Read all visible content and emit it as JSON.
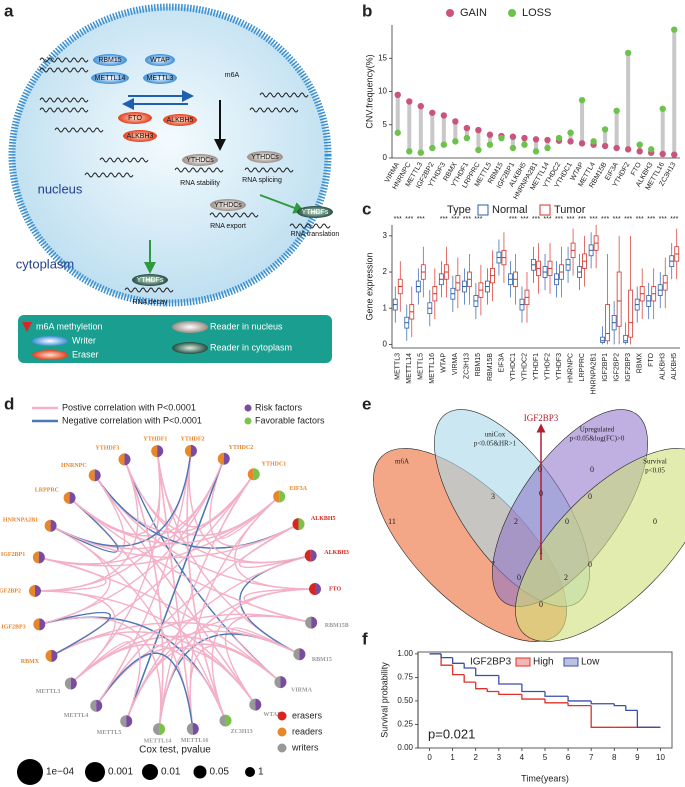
{
  "panel_labels": [
    "a",
    "b",
    "c",
    "d",
    "e",
    "f"
  ],
  "diagram": {
    "labels": [
      "RBM15",
      "WTAP",
      "METTL14",
      "METTL3",
      "m6A",
      "FTO",
      "ALKBH5",
      "ALKBH3",
      "YTHDCs",
      "RNA stability",
      "YTHDCs",
      "RNA splicing",
      "nucleus",
      "YTHDCs",
      "RNA export",
      "YTHDFs",
      "RNA translation",
      "cytoplasm",
      "YTHDFs",
      "RNA decay"
    ],
    "legend": [
      "m6A methyletion",
      "Reader in nucleus",
      "Writer",
      "Eraser",
      "Reader in cytoplasm"
    ]
  },
  "chart_data": [
    {
      "type": "lollipop",
      "ylabel": "CNV.frequency(%)",
      "categories": [
        "VIRMA",
        "HNRNPC",
        "METTL3",
        "IGF2BP2",
        "YTHDF3",
        "RBMX",
        "YTHDF1",
        "LRPPRC",
        "METTL5",
        "RBM15",
        "IGF2BP1",
        "ALKBH5",
        "HNRNPA2B1",
        "METTL14",
        "YTHDC2",
        "YTHDC1",
        "WTAP",
        "METTL4",
        "RBM15B",
        "EIF3A",
        "YTHDF2",
        "FTO",
        "ALKBH3",
        "METTL16",
        "ZC3H13"
      ],
      "series": [
        {
          "name": "GAIN",
          "color": "#c9557c",
          "values": [
            9.5,
            8.5,
            7.8,
            6.8,
            6.4,
            5.5,
            4.5,
            4.2,
            3.5,
            3.3,
            3.2,
            3.0,
            2.8,
            2.7,
            2.6,
            2.5,
            2.2,
            2.0,
            1.8,
            1.5,
            1.3,
            1.0,
            0.8,
            0.6,
            0.5
          ]
        },
        {
          "name": "LOSS",
          "color": "#6cc24a",
          "values": [
            3.8,
            1.0,
            0.8,
            1.5,
            2.0,
            2.5,
            3.0,
            1.2,
            2.0,
            3.0,
            1.5,
            2.0,
            1.0,
            1.5,
            3.0,
            3.8,
            8.7,
            2.5,
            4.3,
            7.1,
            15.8,
            2.0,
            1.3,
            7.4,
            19.3
          ]
        }
      ],
      "ylim": [
        0,
        20
      ],
      "yticks": [
        0,
        5,
        10,
        15
      ]
    },
    {
      "type": "boxplot",
      "ylabel": "Gene expression",
      "legend_title": "Type",
      "categories": [
        "METTL3",
        "METTL14",
        "METTL5",
        "METTL16",
        "WTAP",
        "VIRMA",
        "ZC3H13",
        "RBM15",
        "RBM15B",
        "EIF3A",
        "YTHDC1",
        "YTHDC2",
        "YTHDF1",
        "YTHDF2",
        "YTHDF3",
        "HNRNPC",
        "LRPPRC",
        "HNRNPA2B1",
        "IGF2BP1",
        "IGF2BP2",
        "IGF2BP3",
        "RBMX",
        "FTO",
        "ALKBH3",
        "ALKBH5"
      ],
      "significance": [
        "***",
        "***",
        "***",
        null,
        "***",
        "***",
        "***",
        "***",
        null,
        null,
        "***",
        "***",
        "***",
        "***",
        "***",
        "***",
        "***",
        "***",
        "***",
        "***",
        "***",
        "***",
        "***",
        "***",
        "***"
      ],
      "series": [
        {
          "name": "Normal",
          "color": "#2b5fad",
          "low": [
            0.6,
            0.1,
            1.1,
            0.5,
            1.3,
            0.9,
            1.1,
            0.7,
            1.1,
            1.9,
            1.3,
            0.6,
            1.7,
            1.5,
            1.3,
            1.7,
            1.5,
            2.1,
            0,
            0,
            0,
            0.6,
            0.7,
            1.0,
            1.8
          ],
          "q1": [
            0.95,
            0.45,
            1.45,
            0.85,
            1.65,
            1.25,
            1.45,
            1.05,
            1.45,
            2.25,
            1.65,
            0.95,
            2.05,
            1.85,
            1.65,
            2.05,
            1.85,
            2.45,
            0.05,
            0.4,
            0.05,
            0.95,
            1.05,
            1.35,
            2.15
          ],
          "median": [
            1.1,
            0.6,
            1.6,
            1.0,
            1.8,
            1.4,
            1.6,
            1.2,
            1.6,
            2.4,
            1.8,
            1.1,
            2.2,
            2.0,
            1.8,
            2.2,
            2.0,
            2.6,
            0.1,
            0.6,
            0.1,
            1.1,
            1.2,
            1.5,
            2.3
          ],
          "q3": [
            1.25,
            0.75,
            1.75,
            1.15,
            1.95,
            1.55,
            1.75,
            1.35,
            1.75,
            2.55,
            1.95,
            1.25,
            2.35,
            2.15,
            1.95,
            2.35,
            2.15,
            2.75,
            0.2,
            0.8,
            0.25,
            1.25,
            1.35,
            1.65,
            2.45
          ],
          "high": [
            1.6,
            1.1,
            2.1,
            1.5,
            2.3,
            1.9,
            2.1,
            1.7,
            2.1,
            2.9,
            2.3,
            1.6,
            2.7,
            2.5,
            2.3,
            2.7,
            2.5,
            3.1,
            0.5,
            1.2,
            0.6,
            1.6,
            1.7,
            2.0,
            2.8
          ]
        },
        {
          "name": "Tumor",
          "color": "#d6322a",
          "low": [
            0.9,
            0.2,
            1.3,
            0.7,
            1.3,
            1.0,
            1.1,
            0.8,
            1.2,
            1.7,
            1.1,
            0.6,
            1.4,
            1.4,
            1.3,
            1.9,
            1.6,
            2.1,
            0,
            0,
            0,
            0.7,
            0.7,
            1.0,
            1.8
          ],
          "q1": [
            1.4,
            0.7,
            1.8,
            1.2,
            1.8,
            1.5,
            1.6,
            1.3,
            1.7,
            2.2,
            1.6,
            1.1,
            1.9,
            1.9,
            1.8,
            2.4,
            2.1,
            2.6,
            0.1,
            0.5,
            0.2,
            1.2,
            1.2,
            1.5,
            2.3
          ],
          "median": [
            1.6,
            0.9,
            2.0,
            1.4,
            2.0,
            1.7,
            1.8,
            1.5,
            1.9,
            2.4,
            1.8,
            1.3,
            2.1,
            2.1,
            2.0,
            2.6,
            2.3,
            2.8,
            0.3,
            1.2,
            0.6,
            1.4,
            1.4,
            1.7,
            2.5
          ],
          "q3": [
            1.8,
            1.1,
            2.2,
            1.6,
            2.2,
            1.9,
            2.0,
            1.7,
            2.1,
            2.6,
            2.0,
            1.5,
            2.3,
            2.3,
            2.2,
            2.8,
            2.5,
            3.0,
            1.1,
            2.0,
            1.5,
            1.6,
            1.6,
            1.9,
            2.7
          ],
          "high": [
            2.3,
            1.6,
            2.7,
            2.1,
            2.7,
            2.4,
            2.5,
            2.2,
            2.6,
            3.1,
            2.5,
            2.0,
            2.8,
            2.8,
            2.7,
            3.2,
            3.0,
            3.3,
            2.5,
            3.0,
            3.0,
            2.1,
            2.1,
            2.4,
            3.2
          ]
        }
      ],
      "ylim": [
        -0.1,
        3.3
      ],
      "yticks": [
        0,
        1,
        2,
        3
      ]
    },
    {
      "type": "step",
      "xlabel": "Time(years)",
      "ylabel": "Survival probability",
      "legend_title": "IGF2BP3",
      "annotation": "p=0.021",
      "series": [
        {
          "name": "High",
          "color": "#e0302a",
          "x": [
            0,
            0.5,
            1,
            1.5,
            2,
            2.5,
            3,
            4,
            5,
            6,
            7,
            8,
            10
          ],
          "values": [
            1,
            0.88,
            0.78,
            0.7,
            0.63,
            0.6,
            0.57,
            0.52,
            0.48,
            0.45,
            0.22,
            0.22,
            0.22
          ]
        },
        {
          "name": "Low",
          "color": "#3b4fa8",
          "x": [
            0,
            0.5,
            1,
            1.5,
            2,
            3,
            4,
            5,
            6,
            7,
            8,
            8.5,
            9,
            10
          ],
          "values": [
            1,
            0.96,
            0.9,
            0.85,
            0.77,
            0.68,
            0.6,
            0.55,
            0.5,
            0.47,
            0.45,
            0.4,
            0.22,
            0.22
          ]
        }
      ],
      "xlim": [
        -0.5,
        10.5
      ],
      "xticks": [
        0,
        1,
        2,
        3,
        4,
        5,
        6,
        7,
        8,
        9,
        10
      ],
      "ylim": [
        0,
        1.02
      ],
      "yticks": [
        {
          "value": 0,
          "label": "0.00"
        },
        {
          "value": 0.25,
          "label": "0.25"
        },
        {
          "value": 0.5,
          "label": "0.50"
        },
        {
          "value": 0.75,
          "label": "0.75"
        },
        {
          "value": 1,
          "label": "1.00"
        }
      ]
    }
  ],
  "network": {
    "legend": [
      "Postive correlation with P<0.0001",
      "Negative correlation with P<0.0001",
      "Risk factors",
      "Favorable factors"
    ],
    "role_legend": [
      "erasers",
      "readers",
      "writers"
    ],
    "size_title": "Cox test, pvalue",
    "size_labels": [
      "1e−04",
      "0.001",
      "0.01",
      "0.05",
      "1"
    ],
    "nodes": [
      {
        "label": "HNRNPC",
        "color": "#e8862a",
        "factor_color": "#7a4c9f"
      },
      {
        "label": "YTHDF3",
        "color": "#e8862a",
        "factor_color": "#7a4c9f"
      },
      {
        "label": "YTHDF1",
        "color": "#e8862a",
        "factor_color": "#7a4c9f"
      },
      {
        "label": "YTHDF2",
        "color": "#e8862a",
        "factor_color": "#7a4c9f"
      },
      {
        "label": "YTHDC2",
        "color": "#e8862a",
        "factor_color": "#7a4c9f"
      },
      {
        "label": "YTHDC1",
        "color": "#e8862a",
        "factor_color": "#7cc24a"
      },
      {
        "label": "EIF3A",
        "color": "#e8862a",
        "factor_color": "#7cc24a"
      },
      {
        "label": "ALKBH5",
        "color": "#d7261e",
        "factor_color": "#7cc24a"
      },
      {
        "label": "ALKBH3",
        "color": "#d7261e",
        "factor_color": "#7a4c9f"
      },
      {
        "label": "FTO",
        "color": "#d7261e",
        "factor_color": "#7a4c9f"
      },
      {
        "label": "RBM15B",
        "color": "#999999",
        "factor_color": "#7a4c9f"
      },
      {
        "label": "RBM15",
        "color": "#999999",
        "factor_color": "#7a4c9f"
      },
      {
        "label": "VIRMA",
        "color": "#999999",
        "factor_color": "#7a4c9f"
      },
      {
        "label": "WTAP",
        "color": "#999999",
        "factor_color": "#7a4c9f"
      },
      {
        "label": "ZC3H13",
        "color": "#999999",
        "factor_color": "#7cc24a"
      },
      {
        "label": "METTL16",
        "color": "#999999",
        "factor_color": "#7a4c9f"
      },
      {
        "label": "METTL14",
        "color": "#999999",
        "factor_color": "#7cc24a"
      },
      {
        "label": "METTL5",
        "color": "#999999",
        "factor_color": "#7a4c9f"
      },
      {
        "label": "METTL4",
        "color": "#999999",
        "factor_color": "#7a4c9f"
      },
      {
        "label": "METTL3",
        "color": "#999999",
        "factor_color": "#7a4c9f"
      },
      {
        "label": "RBMX",
        "color": "#e8862a",
        "factor_color": "#7a4c9f"
      },
      {
        "label": "IGF2BP3",
        "color": "#e8862a",
        "factor_color": "#7a4c9f"
      },
      {
        "label": "IGF2BP2",
        "color": "#e8862a",
        "factor_color": "#7a4c9f"
      },
      {
        "label": "IGF2BP1",
        "color": "#e8862a",
        "factor_color": "#7a4c9f"
      },
      {
        "label": "HNRNPA2B1",
        "color": "#e8862a",
        "factor_color": "#7a4c9f"
      },
      {
        "label": "LRPPRC",
        "color": "#e8862a",
        "factor_color": "#7a4c9f"
      }
    ]
  },
  "venn": {
    "highlight": "IGF2BP3",
    "sets": [
      [
        "m6A"
      ],
      [
        "uniCox",
        "p<0.05&HR>1"
      ],
      [
        "Upregulated",
        "p<0.05&log(FC)>0"
      ],
      [
        "Survival",
        "p<0.05"
      ]
    ],
    "counts": [
      11,
      3,
      0,
      0,
      0,
      2,
      0,
      0,
      7,
      1,
      0,
      2,
      0,
      0,
      0
    ]
  }
}
